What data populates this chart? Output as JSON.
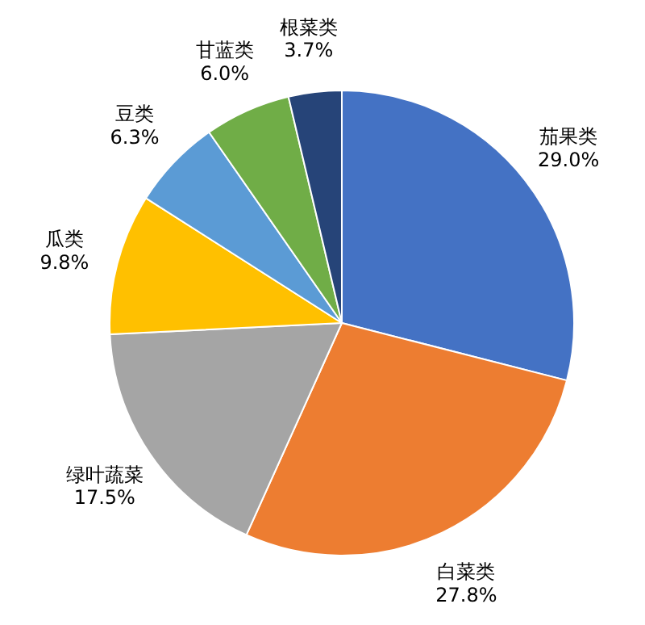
{
  "chart_data": {
    "type": "pie",
    "categories": [
      "茄果类",
      "白菜类",
      "绿叶蔬菜",
      "瓜类",
      "豆类",
      "甘蓝类",
      "根菜类"
    ],
    "values": [
      29.0,
      27.8,
      17.5,
      9.8,
      6.3,
      6.0,
      3.7
    ],
    "colors": [
      "#4472c4",
      "#ed7d31",
      "#a5a5a5",
      "#ffc000",
      "#5b9bd5",
      "#70ad47",
      "#264478"
    ],
    "value_labels": [
      "29.0%",
      "27.8%",
      "17.5%",
      "9.8%",
      "6.3%",
      "6.0%",
      "3.7%"
    ]
  }
}
